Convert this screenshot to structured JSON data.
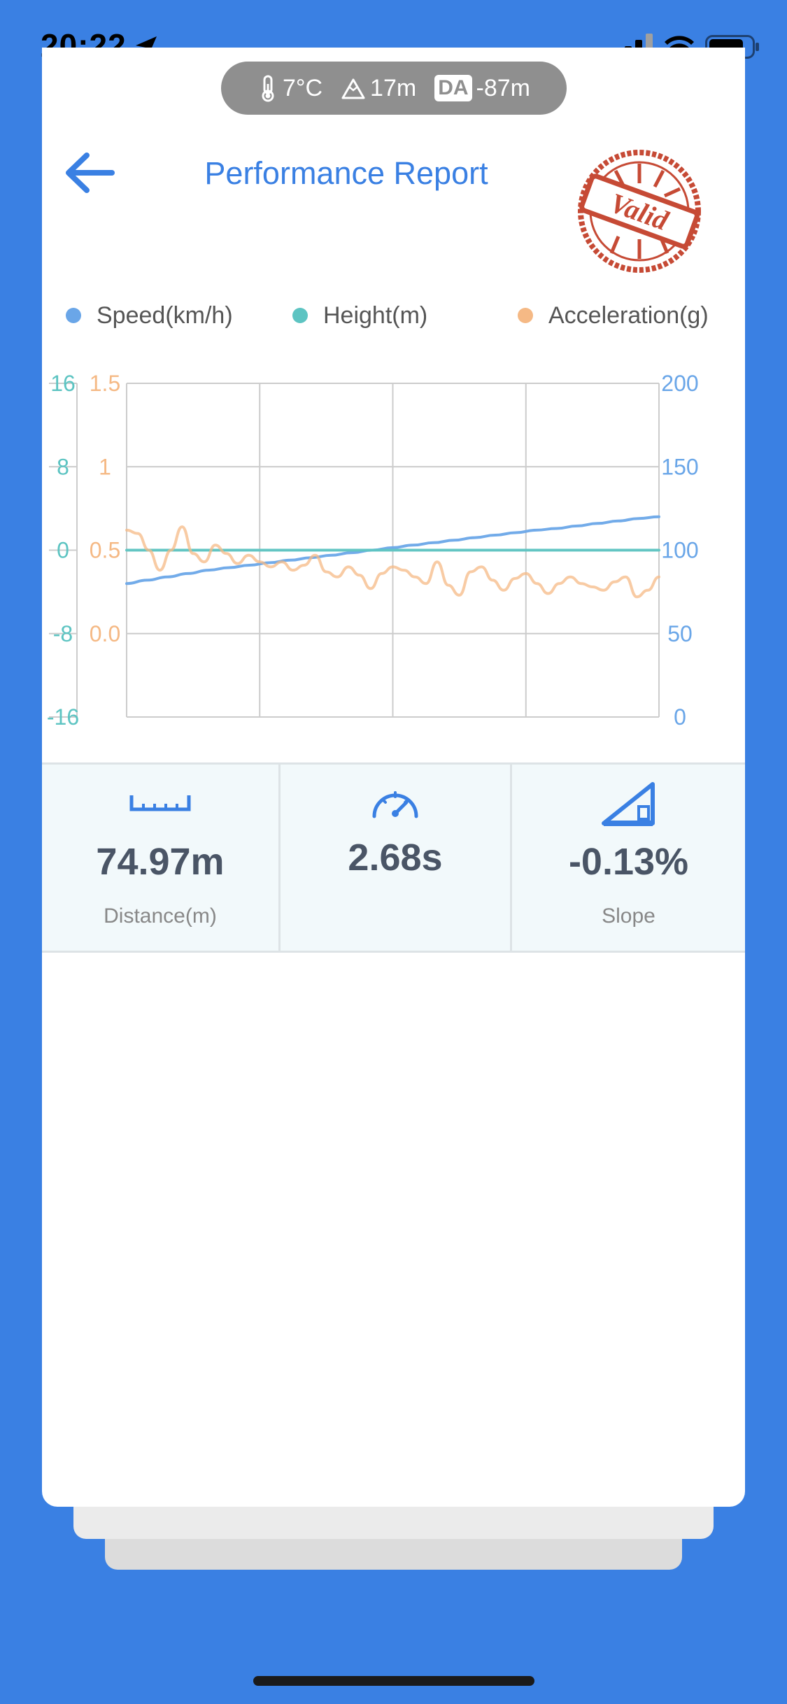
{
  "status_bar": {
    "time": "20:22",
    "location_icon": "location-arrow-icon",
    "signal_icon": "cellular-signal-icon",
    "wifi_icon": "wifi-icon",
    "battery_icon": "battery-icon"
  },
  "weather": {
    "temperature": "7°C",
    "altitude": "17m",
    "da_label": "DA",
    "density_altitude": "-87m"
  },
  "header": {
    "title": "Performance Report",
    "stamp_text": "Valid"
  },
  "legend": [
    {
      "label": "Speed(km/h)",
      "color": "#6aa6e8"
    },
    {
      "label": "Height(m)",
      "color": "#5dc4c2"
    },
    {
      "label": "Acceleration(g)",
      "color": "#f5b985"
    }
  ],
  "chart_data": {
    "type": "line",
    "grid": true,
    "legend_position": "top",
    "x_divisions": 4,
    "axes": {
      "height": {
        "side": "left-outer",
        "ticks": [
          "16",
          "8",
          "0",
          "-8",
          "-16"
        ],
        "range": [
          -16,
          16
        ],
        "color": "#5dc4c2"
      },
      "acceleration": {
        "side": "left-inner",
        "ticks": [
          "1.5",
          "1",
          "0.5",
          "0.0"
        ],
        "range": [
          -0.5,
          1.5
        ],
        "color": "#f5b985"
      },
      "speed": {
        "side": "right",
        "ticks": [
          "200",
          "150",
          "100",
          "50",
          "0"
        ],
        "range": [
          0,
          200
        ],
        "color": "#6aa6e8"
      }
    },
    "series": [
      {
        "name": "Speed(km/h)",
        "axis": "speed",
        "color": "#6aa6e8",
        "values": [
          80,
          82,
          84,
          86,
          88,
          89.5,
          91,
          92.5,
          94,
          95.5,
          97,
          98.5,
          100,
          101.5,
          103,
          104.5,
          106,
          107.5,
          109,
          110.5,
          112,
          113,
          114.5,
          116,
          117.5,
          119,
          120
        ]
      },
      {
        "name": "Height(m)",
        "axis": "height",
        "color": "#5dc4c2",
        "values": [
          0,
          0,
          0,
          0,
          0,
          0,
          0,
          0,
          0,
          0,
          0,
          0,
          0,
          0,
          0,
          0,
          0,
          0,
          0,
          0,
          0,
          0,
          0,
          0,
          0,
          0,
          0
        ]
      },
      {
        "name": "Acceleration(g)",
        "axis": "acceleration",
        "color": "#f5b985",
        "values": [
          0.62,
          0.6,
          0.5,
          0.38,
          0.5,
          0.64,
          0.48,
          0.43,
          0.53,
          0.48,
          0.42,
          0.47,
          0.43,
          0.4,
          0.43,
          0.38,
          0.41,
          0.47,
          0.37,
          0.34,
          0.4,
          0.35,
          0.27,
          0.36,
          0.4,
          0.38,
          0.34,
          0.3,
          0.43,
          0.29,
          0.23,
          0.37,
          0.4,
          0.32,
          0.26,
          0.33,
          0.36,
          0.3,
          0.24,
          0.3,
          0.34,
          0.3,
          0.28,
          0.26,
          0.31,
          0.34,
          0.22,
          0.26,
          0.34
        ]
      }
    ]
  },
  "stats": [
    {
      "icon": "ruler-icon",
      "value": "74.97m",
      "label": "Distance(m)"
    },
    {
      "icon": "speedometer-icon",
      "value": "2.68s",
      "label": ""
    },
    {
      "icon": "slope-icon",
      "value": "-0.13%",
      "label": "Slope"
    }
  ]
}
